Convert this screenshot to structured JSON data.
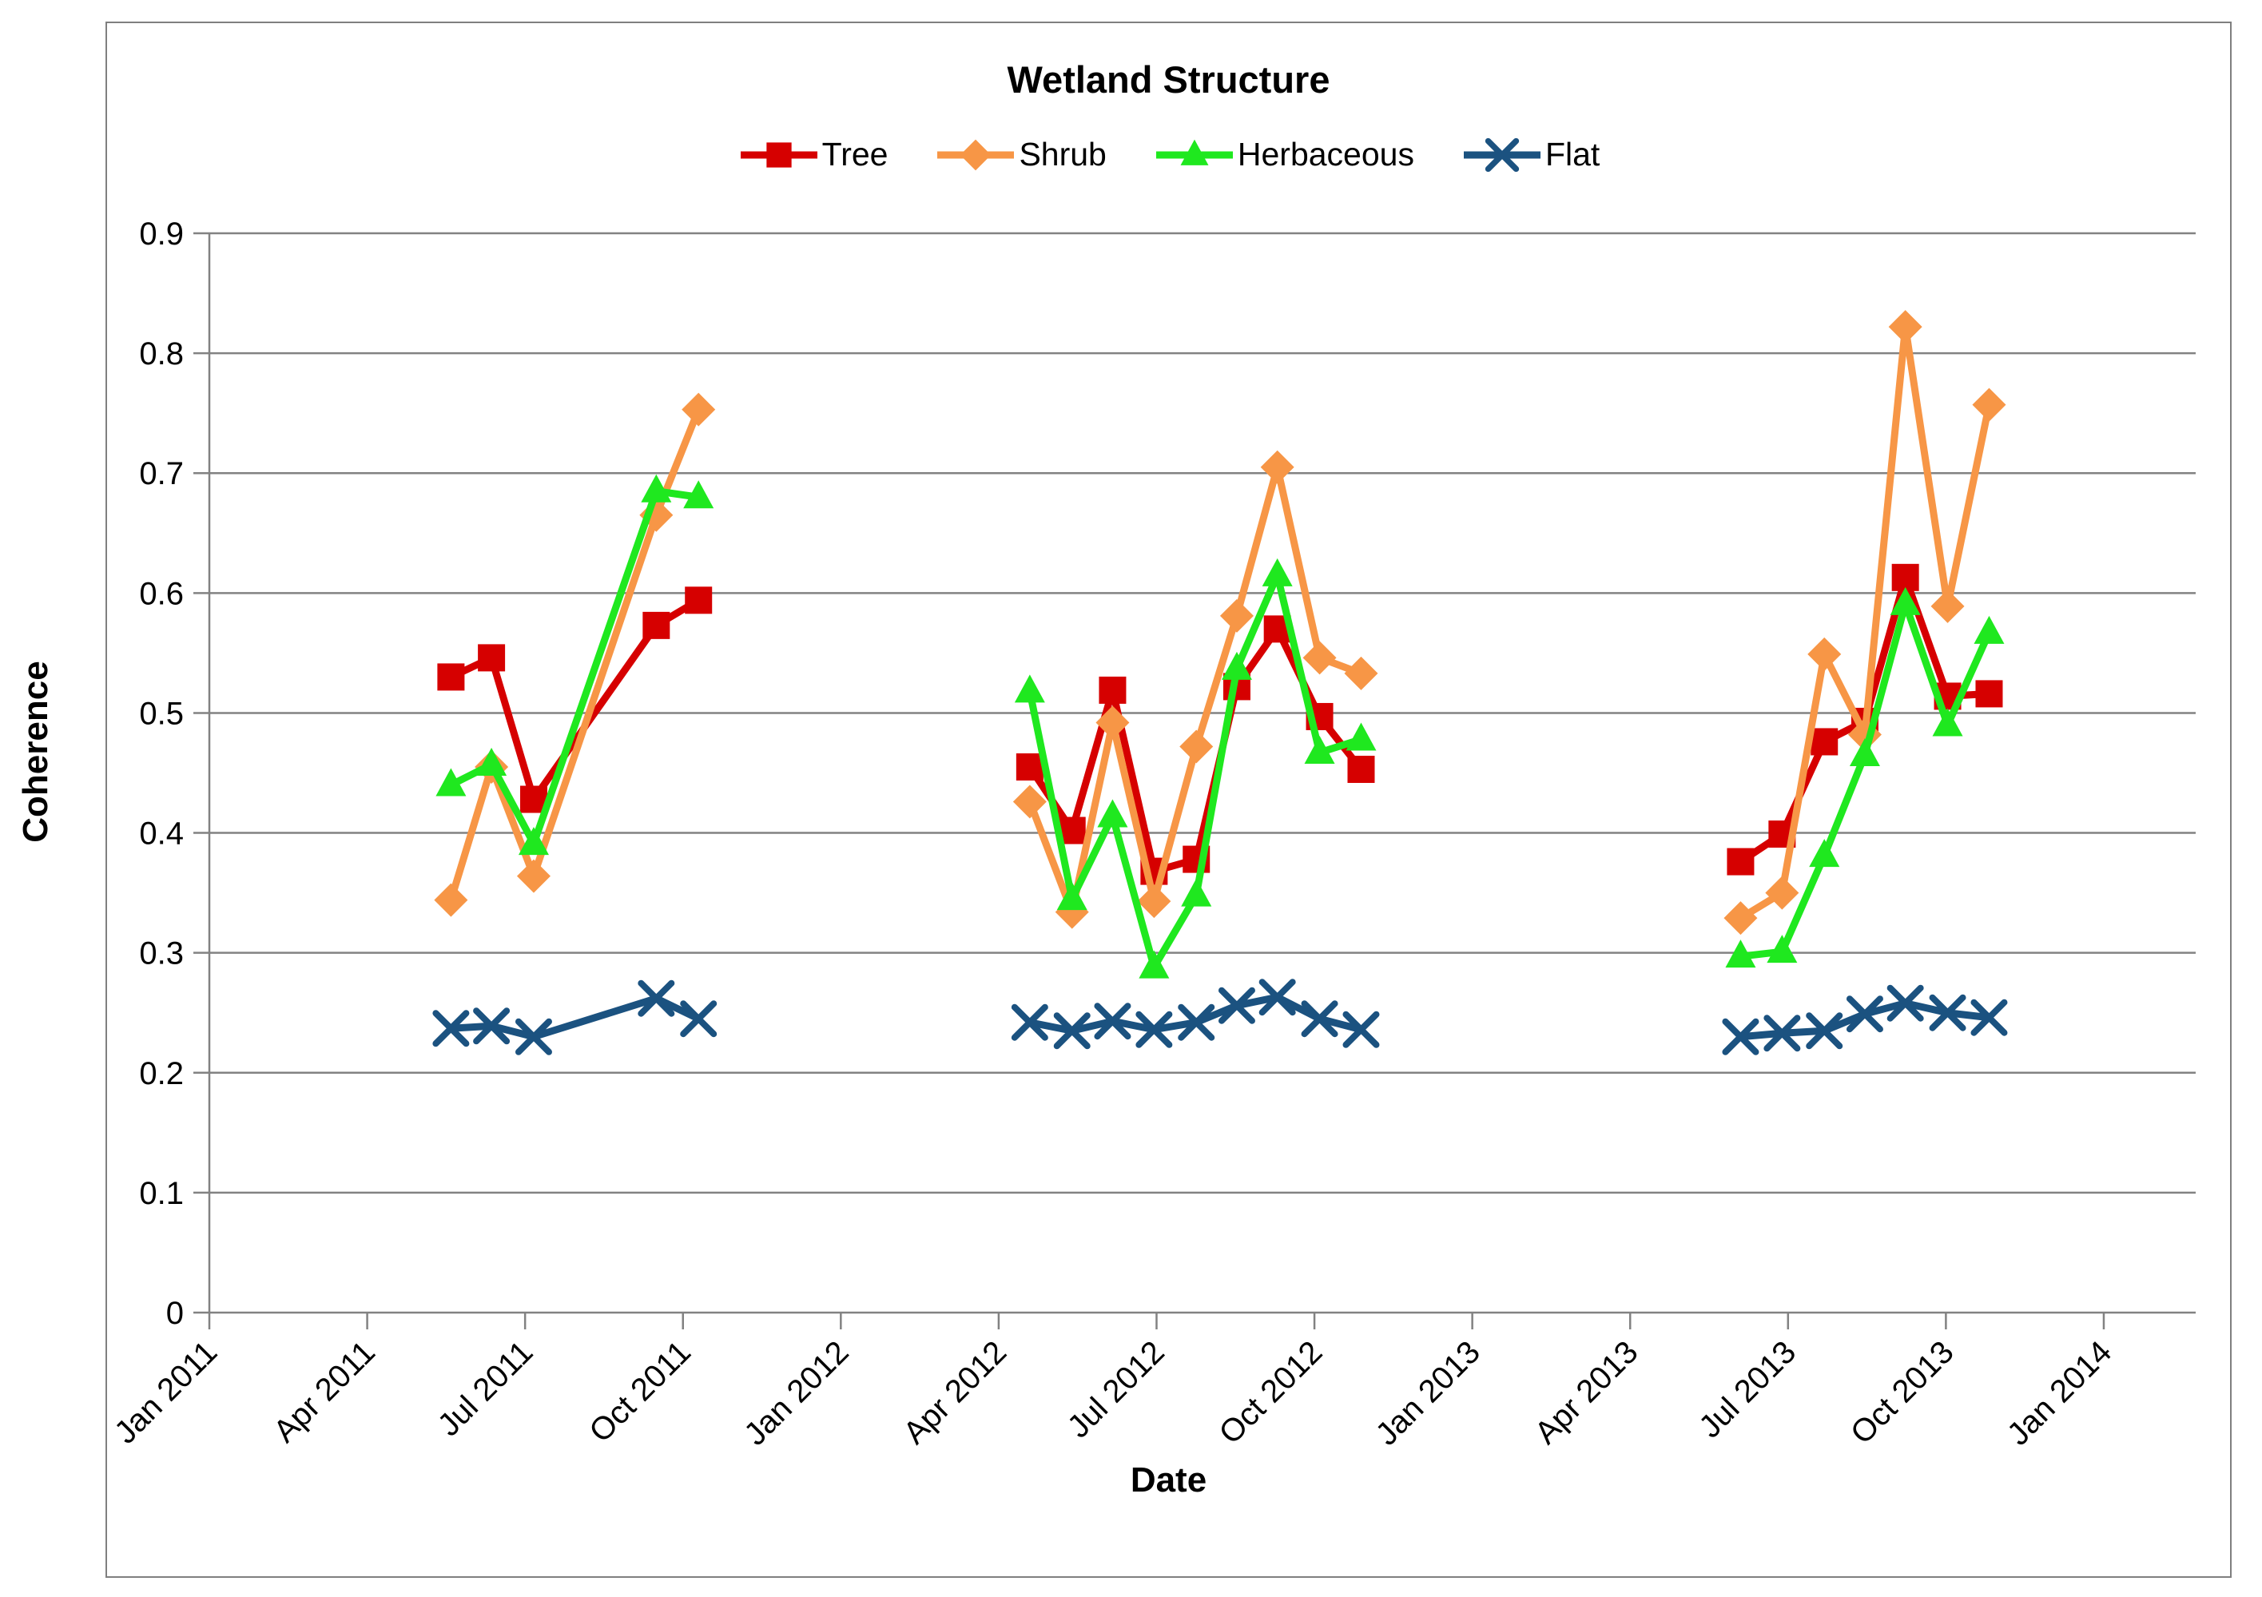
{
  "title": "Wetland Structure",
  "chart_data": {
    "type": "line",
    "title": "Wetland Structure",
    "xlabel": "Date",
    "ylabel": "Coherence",
    "ylim": [
      0,
      0.9
    ],
    "y_tick_labels": [
      "0",
      "0.1",
      "0.2",
      "0.3",
      "0.4",
      "0.5",
      "0.6",
      "0.7",
      "0.8",
      "0.9"
    ],
    "x_tick_labels": [
      "Jan 2011",
      "Apr 2011",
      "Jul 2011",
      "Oct 2011",
      "Jan 2012",
      "Apr 2012",
      "Jul 2012",
      "Oct 2012",
      "Jan 2013",
      "Apr 2013",
      "Jul 2013",
      "Oct 2013",
      "Jan 2014"
    ],
    "grid": "horizontal-only",
    "legend_position": "top-center",
    "series": [
      {
        "name": "Tree",
        "color": "#d60000",
        "marker": "square"
      },
      {
        "name": "Shrub",
        "color": "#f79646",
        "marker": "diamond"
      },
      {
        "name": "Herbaceous",
        "color": "#1fe81f",
        "marker": "triangle"
      },
      {
        "name": "Flat",
        "color": "#1b5280",
        "marker": "x"
      }
    ],
    "clusters": [
      {
        "dates": [
          "2011-05-19",
          "2011-06-12",
          "2011-07-06",
          "2011-09-16",
          "2011-10-10"
        ],
        "values": {
          "Tree": [
            0.53,
            0.546,
            0.428,
            0.573,
            0.594
          ],
          "Shrub": [
            0.344,
            0.455,
            0.364,
            0.665,
            0.753
          ],
          "Herbaceous": [
            0.44,
            0.457,
            0.391,
            0.685,
            0.68
          ],
          "Flat": [
            0.237,
            0.239,
            0.23,
            0.262,
            0.245
          ]
        }
      },
      {
        "dates": [
          "2012-04-19",
          "2012-05-13",
          "2012-06-06",
          "2012-06-30",
          "2012-07-24",
          "2012-08-17",
          "2012-09-10",
          "2012-10-04",
          "2012-10-28"
        ],
        "values": {
          "Tree": [
            0.455,
            0.402,
            0.519,
            0.368,
            0.378,
            0.522,
            0.57,
            0.497,
            0.453
          ],
          "Shrub": [
            0.426,
            0.334,
            0.492,
            0.343,
            0.472,
            0.581,
            0.705,
            0.546,
            0.533
          ],
          "Herbaceous": [
            0.518,
            0.345,
            0.414,
            0.288,
            0.348,
            0.537,
            0.615,
            0.467,
            0.478
          ],
          "Flat": [
            0.242,
            0.235,
            0.243,
            0.236,
            0.242,
            0.256,
            0.263,
            0.245,
            0.236
          ]
        }
      },
      {
        "dates": [
          "2013-06-04",
          "2013-06-28",
          "2013-07-22",
          "2013-08-15",
          "2013-09-08",
          "2013-10-02",
          "2013-10-26"
        ],
        "values": {
          "Tree": [
            0.376,
            0.399,
            0.476,
            0.493,
            0.613,
            0.514,
            0.516
          ],
          "Shrub": [
            0.329,
            0.35,
            0.549,
            0.482,
            0.822,
            0.589,
            0.757
          ],
          "Herbaceous": [
            0.297,
            0.301,
            0.381,
            0.465,
            0.591,
            0.49,
            0.567
          ],
          "Flat": [
            0.23,
            0.233,
            0.235,
            0.249,
            0.258,
            0.25,
            0.246
          ]
        }
      }
    ]
  },
  "style": {
    "grid_color": "#828282",
    "axis_color": "#828282",
    "frame_color": "#7f7f7f"
  }
}
